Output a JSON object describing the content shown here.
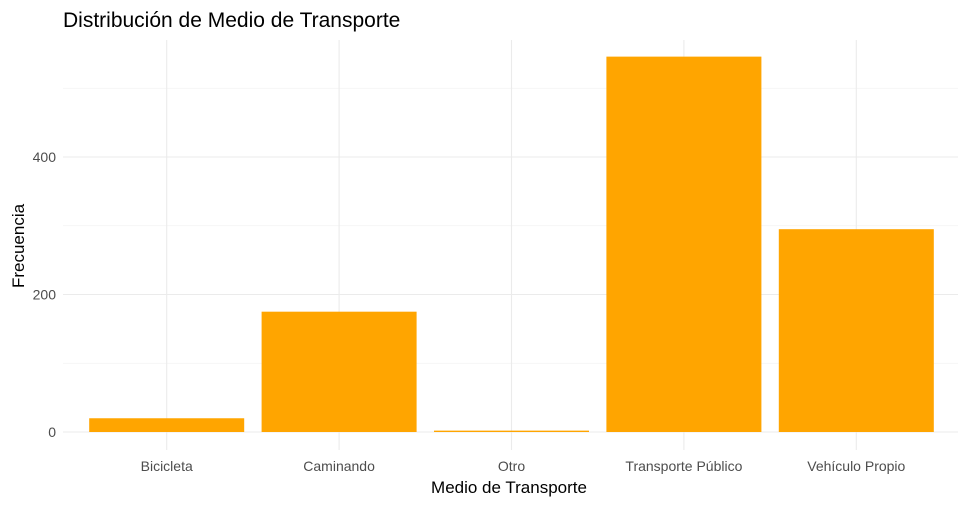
{
  "chart_data": {
    "type": "bar",
    "title": "Distribución de Medio de Transporte",
    "xlabel": "Medio de Transporte",
    "ylabel": "Frecuencia",
    "categories": [
      "Bicicleta",
      "Caminando",
      "Otro",
      "Transporte Público",
      "Vehículo Propio"
    ],
    "values": [
      20,
      175,
      2,
      546,
      295
    ],
    "ylim": [
      0,
      575
    ],
    "yticks": [
      0,
      200,
      400
    ],
    "yticks_minor": [
      100,
      300,
      500
    ],
    "grid": true,
    "bar_color": "#FFA500",
    "grid_color": "#EBEBEB"
  }
}
